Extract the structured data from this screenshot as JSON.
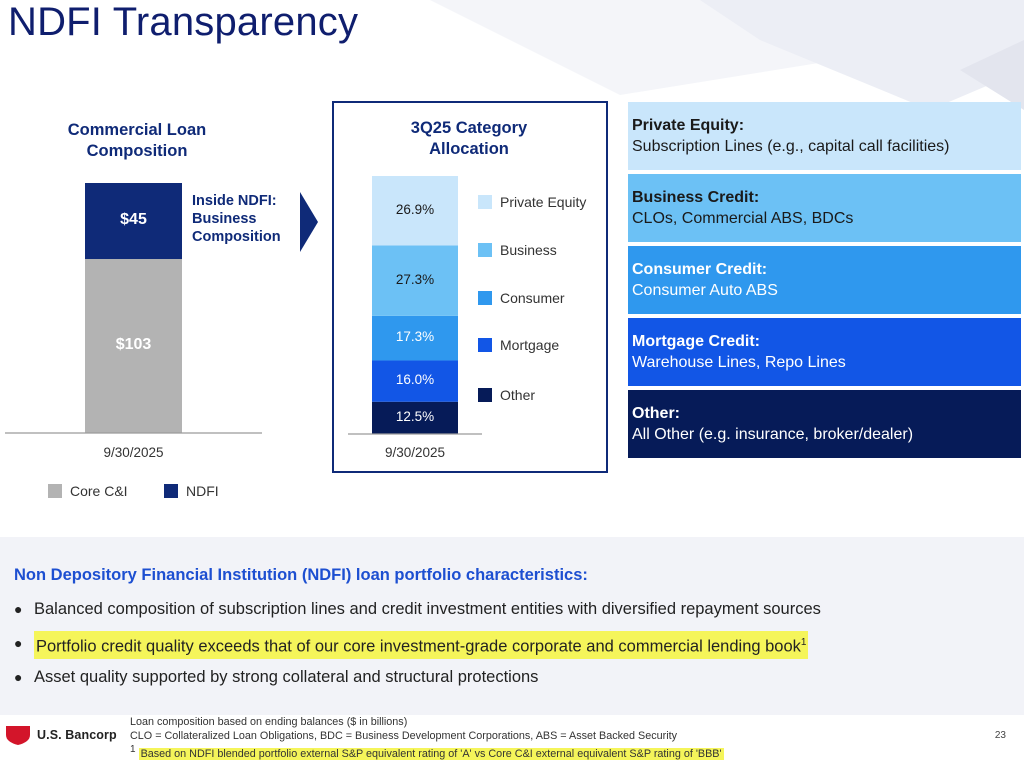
{
  "title": "NDFI Transparency",
  "colors": {
    "core_ci": "#b3b3b3",
    "ndfi": "#0f2a78",
    "private_equity": "#c9e6fb",
    "business": "#6cc1f5",
    "consumer": "#2f98ee",
    "mortgage": "#1256e6",
    "other": "#061b58"
  },
  "chart_data": [
    {
      "type": "bar",
      "title": "Commercial Loan Composition",
      "categories": [
        "9/30/2025"
      ],
      "series": [
        {
          "name": "Core C&I",
          "values": [
            103
          ],
          "label": "$103"
        },
        {
          "name": "NDFI",
          "values": [
            45
          ],
          "label": "$45"
        }
      ],
      "stacked": true,
      "annotation": "Inside NDFI: Business Composition",
      "legend": [
        "Core C&I",
        "NDFI"
      ],
      "legend_position": "bottom"
    },
    {
      "type": "bar",
      "title": "3Q25 Category Allocation",
      "categories": [
        "9/30/2025"
      ],
      "stacked": true,
      "series": [
        {
          "name": "Private Equity",
          "values": [
            26.9
          ],
          "label": "26.9%"
        },
        {
          "name": "Business",
          "values": [
            27.3
          ],
          "label": "27.3%"
        },
        {
          "name": "Consumer",
          "values": [
            17.3
          ],
          "label": "17.3%"
        },
        {
          "name": "Mortgage",
          "values": [
            16.0
          ],
          "label": "16.0%"
        },
        {
          "name": "Other",
          "values": [
            12.5
          ],
          "label": "12.5%"
        }
      ],
      "legend_position": "right"
    }
  ],
  "categories_detail": [
    {
      "heading": "Private Equity:",
      "detail": "Subscription Lines (e.g., capital call facilities)"
    },
    {
      "heading": "Business Credit:",
      "detail": "CLOs, Commercial ABS, BDCs"
    },
    {
      "heading": "Consumer Credit:",
      "detail": "Consumer Auto ABS"
    },
    {
      "heading": "Mortgage Credit:",
      "detail": "Warehouse Lines, Repo Lines"
    },
    {
      "heading": "Other:",
      "detail": "All Other (e.g. insurance, broker/dealer)"
    }
  ],
  "characteristics": {
    "title": "Non Depository Financial Institution (NDFI) loan portfolio characteristics:",
    "bullets": [
      "Balanced composition of subscription lines and credit investment entities with diversified repayment sources",
      "Portfolio credit quality exceeds that of our core investment-grade corporate and commercial lending book",
      "Asset quality supported by strong collateral and structural protections"
    ],
    "bullet_footnote_mark": "1"
  },
  "footer": {
    "logo_text": "U.S. Bancorp",
    "notes": [
      "Loan composition based on ending balances ($ in billions)",
      "CLO = Collateralized Loan Obligations, BDC = Business Development Corporations, ABS = Asset Backed Security"
    ],
    "footnote_mark": "1",
    "footnote_text": "Based on NDFI blended portfolio external S&P equivalent rating of 'A' vs Core C&I external equivalent S&P rating of 'BBB'",
    "page_number": "23"
  }
}
